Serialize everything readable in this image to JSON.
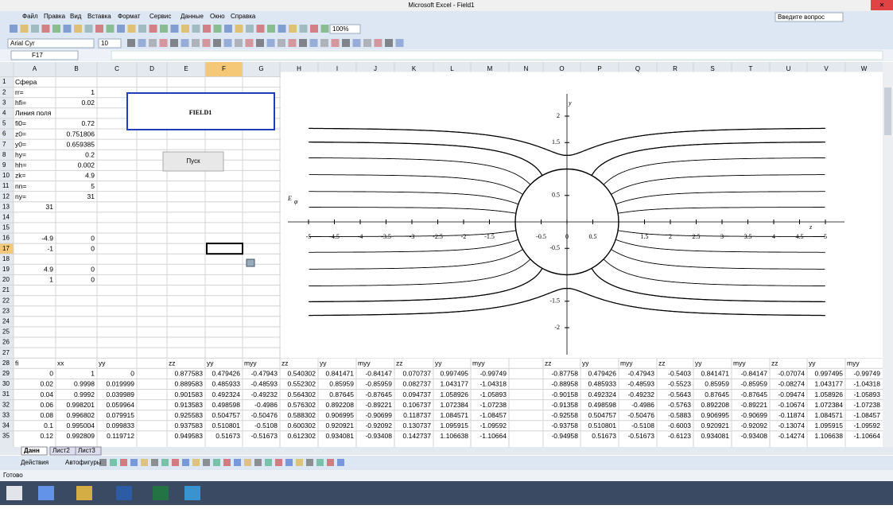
{
  "window": {
    "title": "Microsoft Excel - Field1"
  },
  "menu": [
    "Файл",
    "Правка",
    "Вид",
    "Вставка",
    "Формат",
    "Сервис",
    "Данные",
    "Окно",
    "Справка"
  ],
  "help_box": "Введите вопрос",
  "toolbar": {
    "zoom": "100%",
    "font": "Arial Cyr",
    "size": "10"
  },
  "name_box": "F17",
  "columns": [
    "A",
    "B",
    "C",
    "D",
    "E",
    "F",
    "G",
    "H",
    "I",
    "J",
    "K",
    "L",
    "M",
    "N",
    "O",
    "P",
    "Q",
    "R",
    "S",
    "T",
    "U",
    "V",
    "W"
  ],
  "row_numbers": [
    1,
    2,
    3,
    4,
    5,
    6,
    7,
    8,
    9,
    10,
    11,
    12,
    13,
    14,
    15,
    16,
    17,
    18,
    19,
    20,
    21,
    22,
    23,
    24,
    25,
    26,
    27,
    28,
    29,
    30,
    31,
    32,
    33,
    34,
    35
  ],
  "cells": {
    "1": {
      "A": "Сфера"
    },
    "2": {
      "A": "rr=",
      "B": "1"
    },
    "3": {
      "A": "hfi=",
      "B": "0.02"
    },
    "4": {
      "A": "Линия поля"
    },
    "5": {
      "A": "fi0=",
      "B": "0.72"
    },
    "6": {
      "A": "z0=",
      "B": "0.751806"
    },
    "7": {
      "A": "y0=",
      "B": "0.659385"
    },
    "8": {
      "A": "hy=",
      "B": "0.2"
    },
    "9": {
      "A": "hh=",
      "B": "0.002"
    },
    "10": {
      "A": "zk=",
      "B": "4.9"
    },
    "11": {
      "A": "nn=",
      "B": "5"
    },
    "12": {
      "A": "ny=",
      "B": "31"
    },
    "13": {
      "A": "31"
    },
    "16": {
      "A": "-4.9",
      "B": "0"
    },
    "17": {
      "A": "-1",
      "B": "0"
    },
    "19": {
      "A": "4.9",
      "B": "0"
    },
    "20": {
      "A": "1",
      "B": "0"
    },
    "28": {
      "A": "fi",
      "B": "xx",
      "C": "yy",
      "E": "zz",
      "F": "yy",
      "G": "myy",
      "H": "zz",
      "I": "yy",
      "J": "myy",
      "K": "zz",
      "L": "yy",
      "M": "myy",
      "O": "zz",
      "P": "yy",
      "Q": "myy",
      "R": "zz",
      "S": "yy",
      "T": "myy",
      "U": "zz",
      "V": "yy",
      "W": "myy"
    },
    "29": {
      "A": "0",
      "B": "1",
      "C": "0",
      "E": "0.877583",
      "F": "0.479426",
      "G": "-0.47943",
      "H": "0.540302",
      "I": "0.841471",
      "J": "-0.84147",
      "K": "0.070737",
      "L": "0.997495",
      "M": "-0.99749",
      "O": "-0.87758",
      "P": "0.479426",
      "Q": "-0.47943",
      "R": "-0.5403",
      "S": "0.841471",
      "T": "-0.84147",
      "U": "-0.07074",
      "V": "0.997495",
      "W": "-0.99749"
    },
    "30": {
      "A": "0.02",
      "B": "0.9998",
      "C": "0.019999",
      "E": "0.889583",
      "F": "0.485933",
      "G": "-0.48593",
      "H": "0.552302",
      "I": "0.85959",
      "J": "-0.85959",
      "K": "0.082737",
      "L": "1.043177",
      "M": "-1.04318",
      "O": "-0.88958",
      "P": "0.485933",
      "Q": "-0.48593",
      "R": "-0.5523",
      "S": "0.85959",
      "T": "-0.85959",
      "U": "-0.08274",
      "V": "1.043177",
      "W": "-1.04318"
    },
    "31": {
      "A": "0.04",
      "B": "0.9992",
      "C": "0.039989",
      "E": "0.901583",
      "F": "0.492324",
      "G": "-0.49232",
      "H": "0.564302",
      "I": "0.87645",
      "J": "-0.87645",
      "K": "0.094737",
      "L": "1.058926",
      "M": "-1.05893",
      "O": "-0.90158",
      "P": "0.492324",
      "Q": "-0.49232",
      "R": "-0.5643",
      "S": "0.87645",
      "T": "-0.87645",
      "U": "-0.09474",
      "V": "1.058926",
      "W": "-1.05893"
    },
    "32": {
      "A": "0.06",
      "B": "0.998201",
      "C": "0.059964",
      "E": "0.913583",
      "F": "0.498598",
      "G": "-0.4986",
      "H": "0.576302",
      "I": "0.892208",
      "J": "-0.89221",
      "K": "0.106737",
      "L": "1.072384",
      "M": "-1.07238",
      "O": "-0.91358",
      "P": "0.498598",
      "Q": "-0.4986",
      "R": "-0.5763",
      "S": "0.892208",
      "T": "-0.89221",
      "U": "-0.10674",
      "V": "1.072384",
      "W": "-1.07238"
    },
    "33": {
      "A": "0.08",
      "B": "0.996802",
      "C": "0.079915",
      "E": "0.925583",
      "F": "0.504757",
      "G": "-0.50476",
      "H": "0.588302",
      "I": "0.906995",
      "J": "-0.90699",
      "K": "0.118737",
      "L": "1.084571",
      "M": "-1.08457",
      "O": "-0.92558",
      "P": "0.504757",
      "Q": "-0.50476",
      "R": "-0.5883",
      "S": "0.906995",
      "T": "-0.90699",
      "U": "-0.11874",
      "V": "1.084571",
      "W": "-1.08457"
    },
    "34": {
      "A": "0.1",
      "B": "0.995004",
      "C": "0.099833",
      "E": "0.937583",
      "F": "0.510801",
      "G": "-0.5108",
      "H": "0.600302",
      "I": "0.920921",
      "J": "-0.92092",
      "K": "0.130737",
      "L": "1.095915",
      "M": "-1.09592",
      "O": "-0.93758",
      "P": "0.510801",
      "Q": "-0.5108",
      "R": "-0.6003",
      "S": "0.920921",
      "T": "-0.92092",
      "U": "-0.13074",
      "V": "1.095915",
      "W": "-1.09592"
    },
    "35": {
      "A": "0.12",
      "B": "0.992809",
      "C": "0.119712",
      "E": "0.949583",
      "F": "0.51673",
      "G": "-0.51673",
      "H": "0.612302",
      "I": "0.934081",
      "J": "-0.93408",
      "K": "0.142737",
      "L": "1.106638",
      "M": "-1.10664",
      "O": "-0.94958",
      "P": "0.51673",
      "Q": "-0.51673",
      "R": "-0.6123",
      "S": "0.934081",
      "T": "-0.93408",
      "U": "-0.14274",
      "V": "1.106638",
      "W": "-1.10664"
    }
  },
  "textbox": "FIELD1",
  "button": "Пуск",
  "chart": {
    "y_label": "y",
    "z_label": "z",
    "e_label": "E",
    "e_sub": "φ",
    "xticks": [
      -5,
      -4.5,
      -4,
      -3.5,
      -3,
      -2.5,
      -2,
      -1.5,
      -0.5,
      0,
      0.5,
      1.5,
      2,
      2.5,
      3,
      3.5,
      4,
      4.5,
      5
    ],
    "yticks": [
      2,
      1.5,
      0.5,
      -0.5,
      -1.5,
      -2
    ]
  },
  "sheet_tabs": [
    "Данн",
    "Лист2",
    "Лист3"
  ],
  "drawing": {
    "actions": "Действия",
    "autoshapes": "Автофигуры"
  },
  "status": "Готово"
}
